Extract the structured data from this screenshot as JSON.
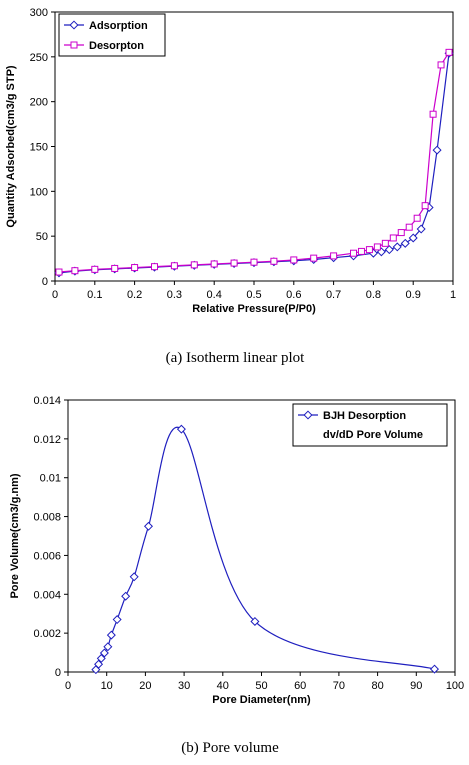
{
  "chart_data": [
    {
      "type": "line",
      "xlabel": "Relative Pressure(P/P0)",
      "ylabel": "Quantity Adsorbed(cm3/g STP)",
      "xlim": [
        0,
        1
      ],
      "ylim": [
        0,
        300
      ],
      "xticks": [
        "0",
        "0.1",
        "0.2",
        "0.3",
        "0.4",
        "0.5",
        "0.6",
        "0.7",
        "0.8",
        "0.9",
        "1"
      ],
      "yticks": [
        "0",
        "50",
        "100",
        "150",
        "200",
        "250",
        "300"
      ],
      "legend_position": "top-left",
      "caption": "(a)  Isotherm  linear  plot",
      "grid": false,
      "series": [
        {
          "name": "Adsorption",
          "color": "#1f1fbf",
          "marker": "diamond",
          "x": [
            0.01,
            0.05,
            0.1,
            0.15,
            0.2,
            0.25,
            0.3,
            0.35,
            0.4,
            0.45,
            0.5,
            0.55,
            0.6,
            0.65,
            0.7,
            0.75,
            0.8,
            0.82,
            0.84,
            0.86,
            0.88,
            0.9,
            0.92,
            0.94,
            0.96,
            0.99
          ],
          "y": [
            9,
            11,
            12.5,
            13.5,
            14.5,
            15.5,
            16.5,
            17.5,
            18.5,
            19.5,
            20.5,
            21.5,
            22.5,
            24,
            26,
            28,
            31,
            32.5,
            35,
            38,
            42,
            48,
            58,
            82,
            146,
            254
          ]
        },
        {
          "name": "Desorpton",
          "color": "#cc00cc",
          "marker": "square",
          "x": [
            0.99,
            0.97,
            0.95,
            0.93,
            0.91,
            0.89,
            0.87,
            0.85,
            0.83,
            0.81,
            0.79,
            0.77,
            0.75,
            0.7,
            0.65,
            0.6,
            0.55,
            0.5,
            0.45,
            0.4,
            0.35,
            0.3,
            0.25,
            0.2,
            0.15,
            0.1,
            0.05,
            0.01
          ],
          "y": [
            255,
            241,
            186,
            84,
            70,
            60,
            54,
            48,
            42,
            38,
            35,
            33,
            31,
            28,
            25.5,
            23.5,
            22,
            21,
            20,
            19,
            18,
            17,
            16,
            15,
            14,
            13,
            11.5,
            10
          ]
        }
      ]
    },
    {
      "type": "line",
      "xlabel": "Pore Diameter(nm)",
      "ylabel": "Pore Volume(cm3/g.nm)",
      "xlim": [
        0,
        100
      ],
      "ylim": [
        0,
        0.014
      ],
      "xticks": [
        "0",
        "10",
        "20",
        "30",
        "40",
        "50",
        "60",
        "70",
        "80",
        "90",
        "100"
      ],
      "yticks": [
        "0",
        "0.002",
        "0.004",
        "0.006",
        "0.008",
        "0.01",
        "0.012",
        "0.014"
      ],
      "legend_position": "top-right",
      "caption": "(b)  Pore  volume",
      "grid": false,
      "series": [
        {
          "name": "BJH Desorption dv/dD Pore Volume",
          "legend_lines": [
            "BJH Desorption",
            "dv/dD Pore Volume"
          ],
          "color": "#1f1fbf",
          "marker": "diamond",
          "x": [
            7.2,
            7.9,
            8.6,
            9.4,
            10.3,
            11.2,
            12.7,
            14.9,
            17.1,
            20.8,
            29.3,
            48.3,
            94.7
          ],
          "y": [
            0.00012,
            0.0004,
            0.0007,
            0.00098,
            0.0013,
            0.0019,
            0.0027,
            0.0039,
            0.0049,
            0.0075,
            0.0125,
            0.0026,
            0.00015
          ]
        }
      ]
    }
  ]
}
